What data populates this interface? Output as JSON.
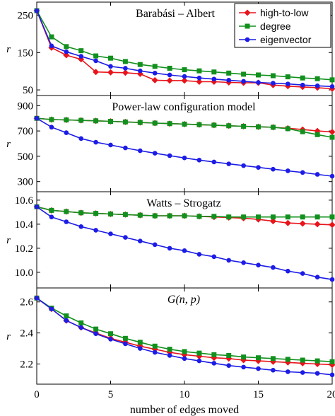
{
  "xlabel": "number of edges moved",
  "x_ticks": [
    "0",
    "5",
    "10",
    "15",
    "20"
  ],
  "x_range": [
    0,
    20
  ],
  "colors": {
    "high_to_low": "#e8141b",
    "degree": "#12901e",
    "eigenvector": "#1c1ce6"
  },
  "legend": {
    "placement": "top-right",
    "entries": [
      {
        "label": "high-to-low",
        "marker": "diamond",
        "color": "#e8141b"
      },
      {
        "label": "degree",
        "marker": "square",
        "color": "#12901e"
      },
      {
        "label": "eigenvector",
        "marker": "circle",
        "color": "#1c1ce6"
      }
    ]
  },
  "chart_data": [
    {
      "type": "line",
      "title": "Barabási – Albert",
      "ylabel": "r",
      "ylim": [
        35,
        285
      ],
      "yticks": [
        50,
        150,
        250
      ],
      "ytick_labels": [
        "50",
        "150",
        "250"
      ],
      "x": [
        0,
        1,
        2,
        3,
        4,
        5,
        6,
        7,
        8,
        9,
        10,
        11,
        12,
        13,
        14,
        15,
        16,
        17,
        18,
        19,
        20
      ],
      "series": [
        {
          "name": "high-to-low",
          "values": [
            262,
            163,
            143,
            132,
            98,
            97,
            96,
            93,
            76,
            75,
            75,
            72,
            72,
            70,
            69,
            69,
            63,
            60,
            58,
            56,
            53
          ]
        },
        {
          "name": "degree",
          "values": [
            262,
            192,
            166,
            155,
            141,
            135,
            126,
            118,
            113,
            108,
            104,
            101,
            98,
            95,
            92,
            90,
            88,
            85,
            82,
            80,
            77
          ]
        },
        {
          "name": "eigenvector",
          "values": [
            262,
            168,
            152,
            140,
            128,
            113,
            108,
            101,
            95,
            90,
            86,
            82,
            79,
            76,
            73,
            70,
            68,
            66,
            63,
            61,
            59
          ]
        }
      ]
    },
    {
      "type": "line",
      "title": "Power-law configuration model",
      "ylabel": "r",
      "ylim": [
        220,
        980
      ],
      "yticks": [
        300,
        500,
        700,
        900
      ],
      "ytick_labels": [
        "300",
        "500",
        "700",
        "900"
      ],
      "x": [
        0,
        1,
        2,
        3,
        4,
        5,
        6,
        7,
        8,
        9,
        10,
        11,
        12,
        13,
        14,
        15,
        16,
        17,
        18,
        19,
        20
      ],
      "series": [
        {
          "name": "high-to-low",
          "values": [
            800,
            790,
            787,
            784,
            780,
            776,
            771,
            767,
            762,
            758,
            754,
            750,
            746,
            741,
            737,
            733,
            729,
            721,
            711,
            700,
            692
          ]
        },
        {
          "name": "degree",
          "values": [
            800,
            790,
            787,
            784,
            780,
            776,
            771,
            767,
            762,
            758,
            754,
            750,
            746,
            741,
            737,
            733,
            729,
            718,
            694,
            671,
            650
          ]
        },
        {
          "name": "eigenvector",
          "values": [
            800,
            730,
            686,
            640,
            611,
            589,
            566,
            544,
            524,
            505,
            487,
            470,
            455,
            440,
            426,
            412,
            398,
            385,
            372,
            357,
            343
          ]
        }
      ]
    },
    {
      "type": "line",
      "title": "Watts – Strogatz",
      "ylabel": "r",
      "ylim": [
        9.87,
        10.67
      ],
      "yticks": [
        10.0,
        10.2,
        10.4,
        10.6
      ],
      "ytick_labels": [
        "10.0",
        "10.2",
        "10.4",
        "10.6"
      ],
      "x": [
        0,
        1,
        2,
        3,
        4,
        5,
        6,
        7,
        8,
        9,
        10,
        11,
        12,
        13,
        14,
        15,
        16,
        17,
        18,
        19,
        20
      ],
      "series": [
        {
          "name": "high-to-low",
          "values": [
            10.545,
            10.515,
            10.505,
            10.495,
            10.49,
            10.485,
            10.48,
            10.475,
            10.47,
            10.47,
            10.47,
            10.465,
            10.46,
            10.455,
            10.45,
            10.44,
            10.425,
            10.41,
            10.405,
            10.4,
            10.395
          ]
        },
        {
          "name": "degree",
          "values": [
            10.545,
            10.515,
            10.505,
            10.495,
            10.49,
            10.485,
            10.48,
            10.475,
            10.47,
            10.47,
            10.47,
            10.465,
            10.465,
            10.46,
            10.46,
            10.46,
            10.46,
            10.46,
            10.46,
            10.46,
            10.46
          ]
        },
        {
          "name": "eigenvector",
          "values": [
            10.545,
            10.46,
            10.42,
            10.38,
            10.35,
            10.32,
            10.29,
            10.26,
            10.23,
            10.2,
            10.18,
            10.15,
            10.13,
            10.1,
            10.08,
            10.06,
            10.04,
            10.01,
            9.99,
            9.96,
            9.94
          ]
        }
      ]
    },
    {
      "type": "line",
      "title": "G(n, p)",
      "title_italic": true,
      "ylabel": "r",
      "ylim": [
        2.07,
        2.69
      ],
      "yticks": [
        2.2,
        2.4,
        2.6
      ],
      "ytick_labels": [
        "2.2",
        "2.4",
        "2.6"
      ],
      "x": [
        0,
        1,
        2,
        3,
        4,
        5,
        6,
        7,
        8,
        9,
        10,
        11,
        12,
        13,
        14,
        15,
        16,
        17,
        18,
        19,
        20
      ],
      "series": [
        {
          "name": "high-to-low",
          "values": [
            2.625,
            2.555,
            2.48,
            2.435,
            2.4,
            2.365,
            2.34,
            2.315,
            2.295,
            2.275,
            2.26,
            2.25,
            2.24,
            2.235,
            2.225,
            2.22,
            2.215,
            2.21,
            2.205,
            2.2,
            2.195
          ]
        },
        {
          "name": "degree",
          "values": [
            2.625,
            2.56,
            2.51,
            2.465,
            2.425,
            2.395,
            2.365,
            2.34,
            2.315,
            2.295,
            2.28,
            2.27,
            2.26,
            2.255,
            2.245,
            2.24,
            2.235,
            2.23,
            2.225,
            2.22,
            2.215
          ]
        },
        {
          "name": "eigenvector",
          "values": [
            2.625,
            2.555,
            2.48,
            2.435,
            2.395,
            2.36,
            2.33,
            2.3,
            2.275,
            2.255,
            2.235,
            2.22,
            2.205,
            2.19,
            2.18,
            2.17,
            2.16,
            2.15,
            2.145,
            2.14,
            2.13
          ]
        }
      ]
    }
  ]
}
